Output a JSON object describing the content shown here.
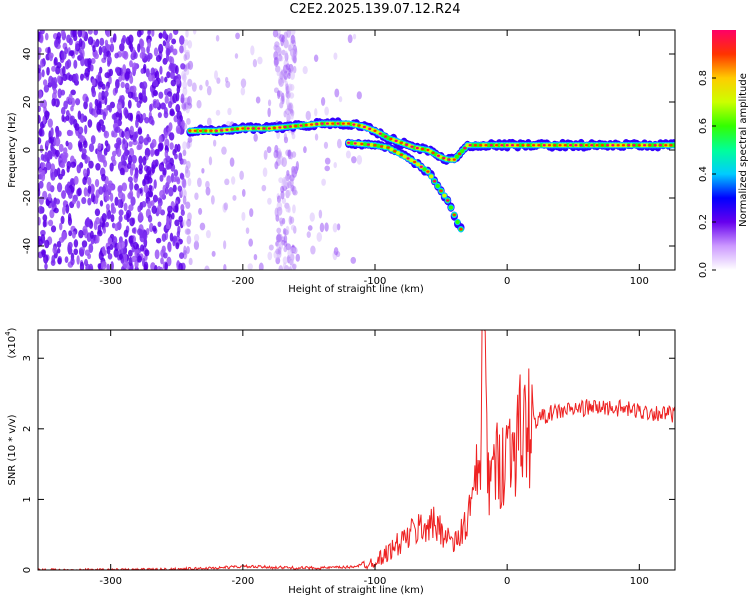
{
  "page": {
    "title": "C2E2.2025.139.07.12.R24"
  },
  "chart_data": [
    {
      "type": "heatmap",
      "title": "C2E2.2025.139.07.12.R24",
      "xlabel": "Height of straight line (km)",
      "ylabel": "Frequency (Hz)",
      "xlim": [
        -355,
        127
      ],
      "ylim": [
        -50,
        50
      ],
      "x_ticks": [
        -300,
        -200,
        -100,
        0,
        100
      ],
      "y_ticks": [
        -40,
        -20,
        0,
        20,
        40
      ],
      "colorbar": {
        "label": "Normalized spectral amplitude",
        "range": [
          0,
          1
        ],
        "ticks": [
          0.0,
          0.2,
          0.4,
          0.6,
          0.8
        ],
        "colors": [
          "#ffffff",
          "#cc99ff",
          "#6600ee",
          "#0000ff",
          "#00ccff",
          "#00ff99",
          "#33ff00",
          "#ccff00",
          "#ffcc00",
          "#ff3300",
          "#ff0066"
        ]
      },
      "ridge": {
        "x": [
          -240,
          -220,
          -200,
          -180,
          -160,
          -140,
          -120,
          -110,
          -100,
          -90,
          -80,
          -70,
          -60,
          -50,
          -45,
          -40,
          -35,
          -30,
          -20,
          -10,
          0,
          20,
          40,
          60,
          80,
          100,
          127
        ],
        "y": [
          8,
          8,
          9,
          9,
          10,
          11,
          11,
          10,
          8,
          5,
          3,
          1,
          0,
          -3,
          -4,
          -4,
          -1,
          2,
          2,
          2,
          2,
          2,
          2,
          2,
          2,
          2,
          2
        ]
      },
      "branch": {
        "x": [
          -120,
          -100,
          -90,
          -80,
          -70,
          -60,
          -55,
          -50,
          -45,
          -40,
          -35
        ],
        "y": [
          3,
          2,
          1,
          -2,
          -5,
          -9,
          -13,
          -17,
          -21,
          -27,
          -33
        ]
      }
    },
    {
      "type": "line",
      "xlabel": "Height of straight line (km)",
      "ylabel": "SNR (10 * v/v)",
      "y_multiplier": "(x10",
      "y_multiplier_exp": "4",
      "y_multiplier_close": ")",
      "xlim": [
        -355,
        127
      ],
      "ylim": [
        0,
        3.4
      ],
      "x_ticks": [
        -300,
        -200,
        -100,
        0,
        100
      ],
      "y_ticks": [
        0,
        1,
        2,
        3
      ],
      "color": "#ee2222",
      "series": [
        {
          "x": [
            -355,
            -300,
            -250,
            -220,
            -200,
            -180,
            -160,
            -140,
            -120,
            -110,
            -100,
            -90,
            -80,
            -70,
            -60,
            -50,
            -40,
            -30,
            -25,
            -20,
            -18,
            -15,
            -10,
            0,
            10,
            20,
            30,
            40,
            60,
            80,
            100,
            127
          ],
          "y": [
            0.0,
            0.0,
            0.01,
            0.03,
            0.05,
            0.04,
            0.03,
            0.03,
            0.04,
            0.07,
            0.12,
            0.25,
            0.4,
            0.55,
            0.65,
            0.6,
            0.35,
            0.7,
            1.1,
            1.5,
            3.4,
            1.3,
            1.4,
            1.7,
            1.95,
            2.1,
            2.2,
            2.25,
            2.3,
            2.3,
            2.25,
            2.2
          ]
        }
      ]
    }
  ]
}
